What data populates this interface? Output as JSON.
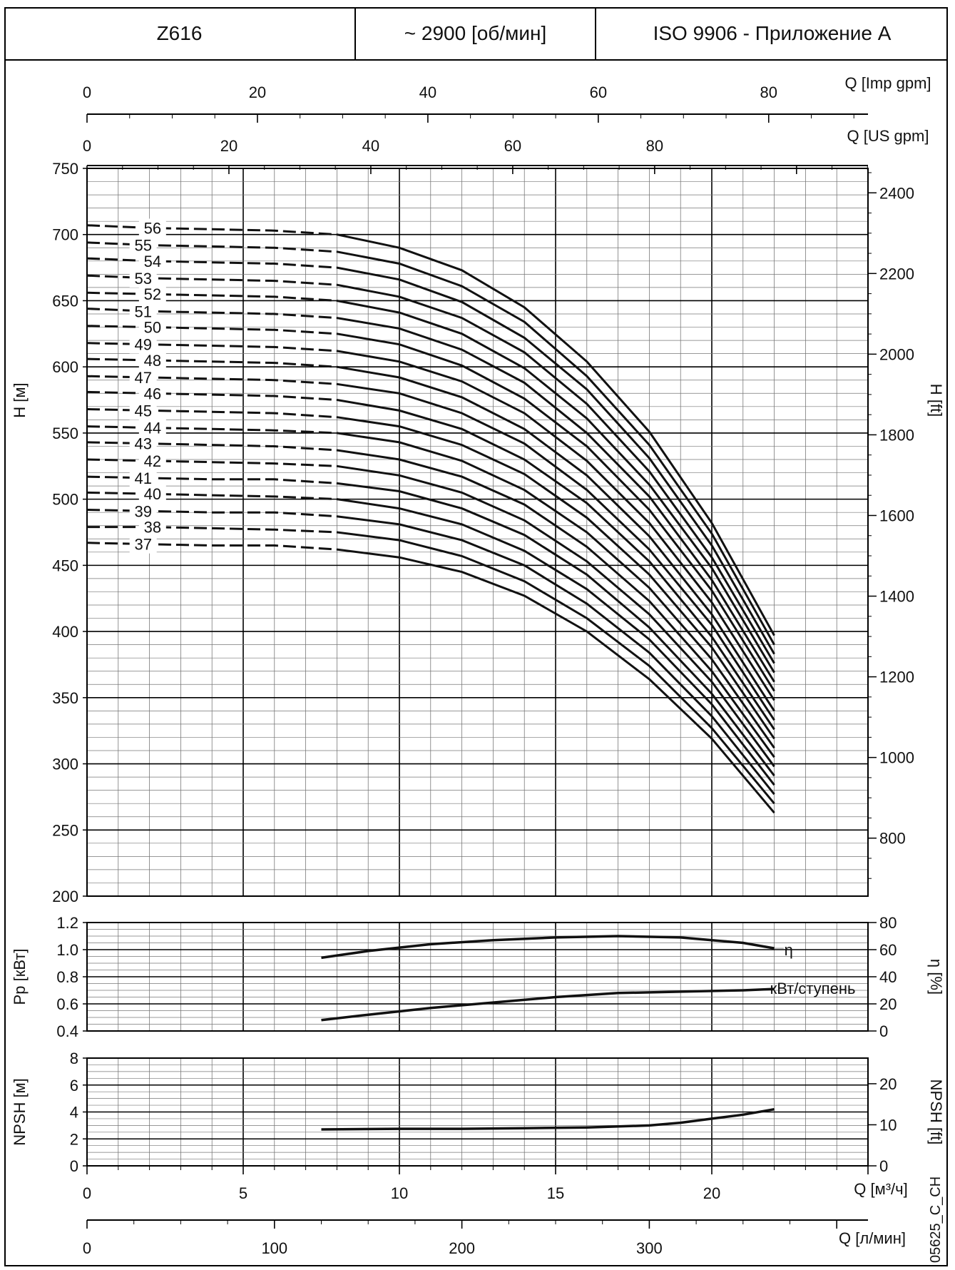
{
  "header": {
    "model": "Z616",
    "speed": "~ 2900 [об/мин]",
    "standard": "ISO 9906 - Приложение А"
  },
  "figure_code": "05625_C_CH",
  "chart_data": [
    {
      "type": "line",
      "panel": "head",
      "ylabel": "H [м]",
      "ylabel_right": "H [ft]",
      "ylim": [
        200,
        750
      ],
      "yticks": [
        200,
        250,
        300,
        350,
        400,
        450,
        500,
        550,
        600,
        650,
        700,
        750
      ],
      "yticks_right": [
        800,
        1000,
        1200,
        1400,
        1600,
        1800,
        2000,
        2200,
        2400
      ],
      "xlabel": "Q [м³/ч]",
      "xlim": [
        0,
        25
      ],
      "xticks": [
        0,
        5,
        10,
        15,
        20
      ],
      "top_axes": [
        {
          "label": "Q [Imp gpm]",
          "ticks": [
            0,
            20,
            40,
            60,
            80
          ]
        },
        {
          "label": "Q [US gpm]",
          "ticks": [
            0,
            20,
            40,
            60,
            80
          ]
        }
      ],
      "bottom_axis2": {
        "label": "Q [л/мин]",
        "ticks": [
          0,
          100,
          200,
          300
        ]
      },
      "grid": true,
      "x": [
        0,
        2,
        4,
        6,
        8,
        10,
        12,
        14,
        16,
        18,
        20,
        22
      ],
      "series": [
        {
          "name": "56",
          "values": [
            707,
            705,
            704,
            703,
            700,
            690,
            673,
            645,
            604,
            551,
            482,
            397
          ]
        },
        {
          "name": "55",
          "values": [
            694,
            692,
            691,
            690,
            687,
            678,
            661,
            634,
            593,
            541,
            474,
            390
          ]
        },
        {
          "name": "54",
          "values": [
            682,
            680,
            679,
            678,
            675,
            666,
            649,
            622,
            583,
            531,
            465,
            383
          ]
        },
        {
          "name": "53",
          "values": [
            669,
            667,
            666,
            665,
            662,
            653,
            637,
            611,
            572,
            521,
            456,
            376
          ]
        },
        {
          "name": "52",
          "values": [
            656,
            655,
            654,
            653,
            650,
            641,
            625,
            599,
            561,
            511,
            448,
            369
          ]
        },
        {
          "name": "51",
          "values": [
            644,
            642,
            641,
            640,
            637,
            629,
            613,
            588,
            550,
            502,
            439,
            362
          ]
        },
        {
          "name": "50",
          "values": [
            631,
            630,
            629,
            628,
            625,
            617,
            601,
            576,
            540,
            492,
            431,
            355
          ]
        },
        {
          "name": "49",
          "values": [
            618,
            617,
            616,
            615,
            612,
            604,
            589,
            565,
            529,
            482,
            422,
            348
          ]
        },
        {
          "name": "48",
          "values": [
            606,
            605,
            604,
            603,
            600,
            592,
            577,
            553,
            518,
            472,
            413,
            340
          ]
        },
        {
          "name": "47",
          "values": [
            593,
            592,
            591,
            590,
            587,
            580,
            565,
            542,
            507,
            462,
            405,
            333
          ]
        },
        {
          "name": "46",
          "values": [
            581,
            580,
            579,
            578,
            575,
            567,
            553,
            530,
            497,
            453,
            396,
            326
          ]
        },
        {
          "name": "45",
          "values": [
            568,
            567,
            566,
            565,
            562,
            555,
            541,
            519,
            486,
            443,
            388,
            319
          ]
        },
        {
          "name": "44",
          "values": [
            555,
            554,
            553,
            552,
            550,
            543,
            529,
            507,
            475,
            433,
            379,
            312
          ]
        },
        {
          "name": "43",
          "values": [
            543,
            542,
            541,
            540,
            537,
            530,
            517,
            496,
            464,
            423,
            370,
            305
          ]
        },
        {
          "name": "42",
          "values": [
            530,
            529,
            528,
            527,
            525,
            518,
            505,
            484,
            453,
            413,
            362,
            298
          ]
        },
        {
          "name": "41",
          "values": [
            517,
            516,
            515,
            515,
            512,
            506,
            493,
            473,
            443,
            403,
            353,
            291
          ]
        },
        {
          "name": "40",
          "values": [
            505,
            504,
            503,
            502,
            500,
            493,
            481,
            461,
            432,
            394,
            345,
            284
          ]
        },
        {
          "name": "39",
          "values": [
            492,
            491,
            490,
            490,
            487,
            481,
            469,
            450,
            421,
            384,
            336,
            277
          ]
        },
        {
          "name": "38",
          "values": [
            479,
            479,
            478,
            477,
            475,
            469,
            457,
            438,
            410,
            374,
            327,
            270
          ]
        },
        {
          "name": "37",
          "values": [
            467,
            466,
            465,
            465,
            462,
            456,
            445,
            427,
            400,
            364,
            319,
            263
          ]
        }
      ]
    },
    {
      "type": "line",
      "panel": "power-efficiency",
      "ylabel": "Pp [кВт]",
      "ylabel_right": "η [%]",
      "ylim": [
        0.4,
        1.2
      ],
      "yticks": [
        0.4,
        0.6,
        0.8,
        1.0,
        1.2
      ],
      "yticks_right": [
        0,
        20,
        40,
        60,
        80
      ],
      "xlim": [
        0,
        25
      ],
      "grid": true,
      "series": [
        {
          "name": "η",
          "axis": "right",
          "x": [
            7.5,
            9,
            11,
            13,
            15,
            17,
            19,
            20,
            21,
            22
          ],
          "values": [
            54,
            59,
            64,
            67,
            69,
            70,
            69,
            67,
            65,
            61
          ]
        },
        {
          "name": "кВт/ступень",
          "axis": "left",
          "x": [
            7.5,
            9,
            11,
            13,
            15,
            17,
            19,
            21,
            22
          ],
          "values": [
            0.48,
            0.52,
            0.57,
            0.61,
            0.65,
            0.68,
            0.69,
            0.7,
            0.71
          ]
        }
      ]
    },
    {
      "type": "line",
      "panel": "npsh",
      "ylabel": "NPSH [м]",
      "ylabel_right": "NPSH [ft]",
      "ylim": [
        0,
        8
      ],
      "yticks": [
        0,
        2,
        4,
        6,
        8
      ],
      "yticks_right": [
        0,
        10,
        20
      ],
      "xlim": [
        0,
        25
      ],
      "grid": true,
      "series": [
        {
          "name": "NPSH",
          "x": [
            7.5,
            10,
            12,
            14,
            16,
            18,
            19,
            20,
            21,
            22
          ],
          "values": [
            2.7,
            2.75,
            2.75,
            2.8,
            2.85,
            3.0,
            3.2,
            3.5,
            3.8,
            4.2
          ]
        }
      ]
    }
  ],
  "curve_labels": {
    "efficiency": "η",
    "power": "кВт/ступень"
  }
}
